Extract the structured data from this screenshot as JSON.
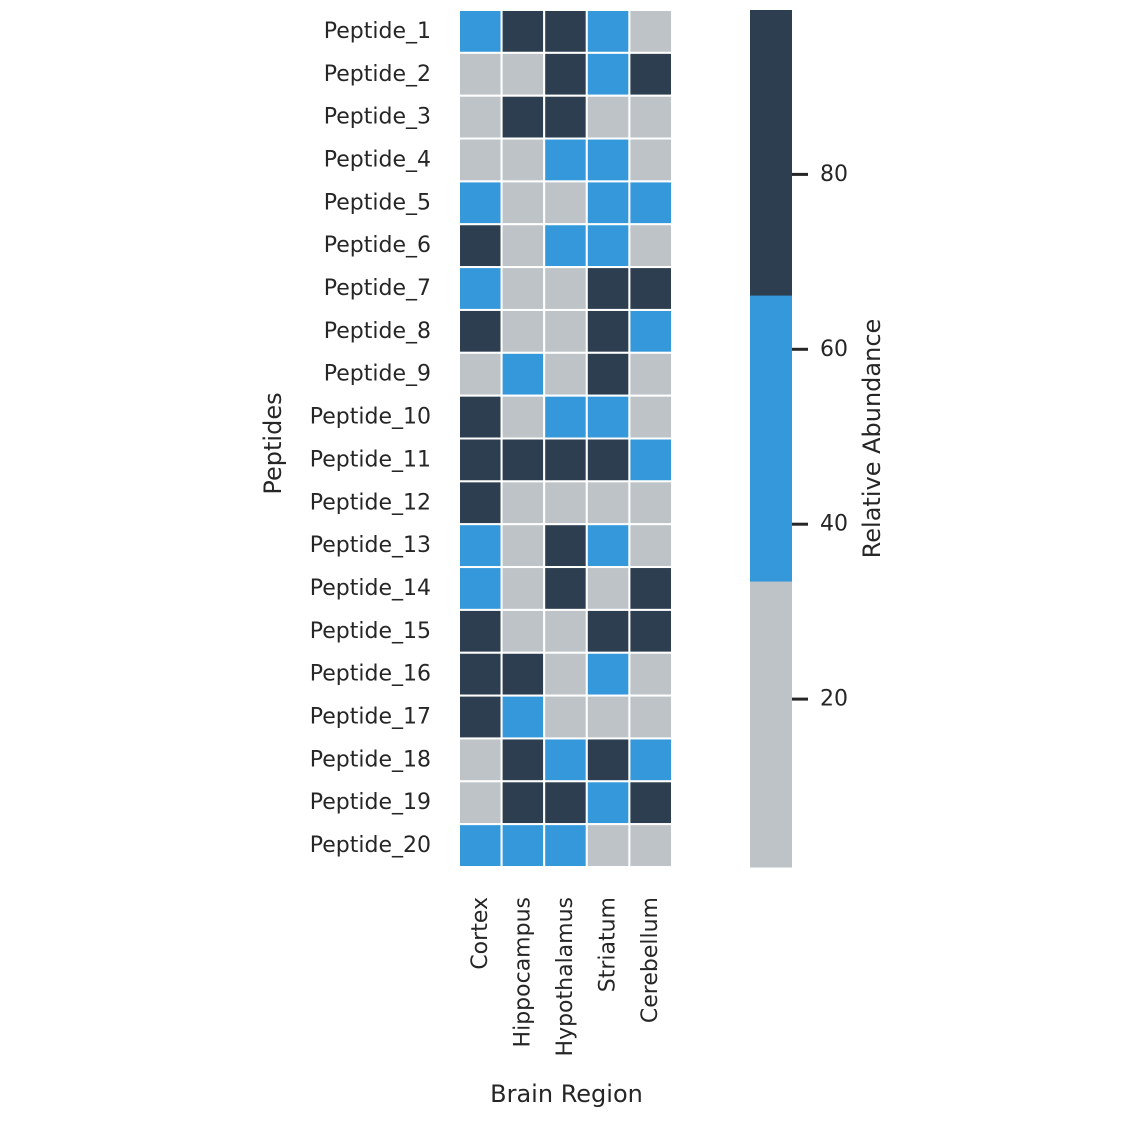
{
  "chart_data": {
    "type": "heatmap",
    "title": "",
    "xlabel": "Brain Region",
    "ylabel": "Peptides",
    "x_categories": [
      "Cortex",
      "Hippocampus",
      "Hypothalamus",
      "Striatum",
      "Cerebellum"
    ],
    "y_categories": [
      "Peptide_1",
      "Peptide_2",
      "Peptide_3",
      "Peptide_4",
      "Peptide_5",
      "Peptide_6",
      "Peptide_7",
      "Peptide_8",
      "Peptide_9",
      "Peptide_10",
      "Peptide_11",
      "Peptide_12",
      "Peptide_13",
      "Peptide_14",
      "Peptide_15",
      "Peptide_16",
      "Peptide_17",
      "Peptide_18",
      "Peptide_19",
      "Peptide_20"
    ],
    "levels": [
      [
        1,
        2,
        2,
        1,
        0
      ],
      [
        0,
        0,
        2,
        1,
        2
      ],
      [
        0,
        2,
        2,
        0,
        0
      ],
      [
        0,
        0,
        1,
        1,
        0
      ],
      [
        1,
        0,
        0,
        1,
        1
      ],
      [
        2,
        0,
        1,
        1,
        0
      ],
      [
        1,
        0,
        0,
        2,
        2
      ],
      [
        2,
        0,
        0,
        2,
        1
      ],
      [
        0,
        1,
        0,
        2,
        0
      ],
      [
        2,
        0,
        1,
        1,
        0
      ],
      [
        2,
        2,
        2,
        2,
        1
      ],
      [
        2,
        0,
        0,
        0,
        0
      ],
      [
        1,
        0,
        2,
        1,
        0
      ],
      [
        1,
        0,
        2,
        0,
        2
      ],
      [
        2,
        0,
        0,
        2,
        2
      ],
      [
        2,
        2,
        0,
        1,
        0
      ],
      [
        2,
        1,
        0,
        0,
        0
      ],
      [
        0,
        2,
        1,
        2,
        1
      ],
      [
        0,
        2,
        2,
        1,
        2
      ],
      [
        1,
        1,
        1,
        0,
        0
      ]
    ],
    "colorbar": {
      "label": "Relative Abundance",
      "range": [
        0.8,
        98.8
      ],
      "ticks": [
        20,
        40,
        60,
        80
      ],
      "tick_labels": [
        "20",
        "40",
        "60",
        "80"
      ],
      "bins": [
        {
          "from": 0.8,
          "to": 33.5,
          "color": "#bdc3c7"
        },
        {
          "from": 33.5,
          "to": 66.2,
          "color": "#3498db"
        },
        {
          "from": 66.2,
          "to": 98.8,
          "color": "#2c3e50"
        }
      ]
    },
    "cell_border_color": "#ffffff",
    "text_color": "#262626"
  }
}
